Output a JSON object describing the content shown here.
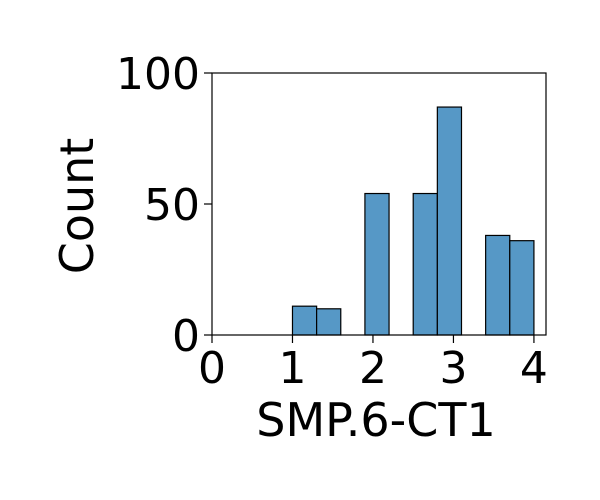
{
  "chart_data": {
    "type": "bar",
    "subtype": "histogram",
    "title": "",
    "xlabel": "SMP.6-CT1",
    "ylabel": "Count",
    "xlim": [
      0,
      4.15
    ],
    "ylim": [
      0,
      100
    ],
    "xticks": [
      0,
      1,
      2,
      3,
      4
    ],
    "yticks": [
      0,
      50,
      100
    ],
    "bar_color": "#5698c6",
    "edge_color": "#000000",
    "grid": false,
    "bins": [
      {
        "x0": 1.0,
        "x1": 1.3,
        "count": 11
      },
      {
        "x0": 1.3,
        "x1": 1.6,
        "count": 10
      },
      {
        "x0": 1.6,
        "x1": 1.9,
        "count": 0
      },
      {
        "x0": 1.9,
        "x1": 2.2,
        "count": 54
      },
      {
        "x0": 2.2,
        "x1": 2.5,
        "count": 0
      },
      {
        "x0": 2.5,
        "x1": 2.8,
        "count": 54
      },
      {
        "x0": 2.8,
        "x1": 3.1,
        "count": 87
      },
      {
        "x0": 3.1,
        "x1": 3.4,
        "count": 0
      },
      {
        "x0": 3.4,
        "x1": 3.7,
        "count": 38
      },
      {
        "x0": 3.7,
        "x1": 4.0,
        "count": 36
      }
    ]
  }
}
